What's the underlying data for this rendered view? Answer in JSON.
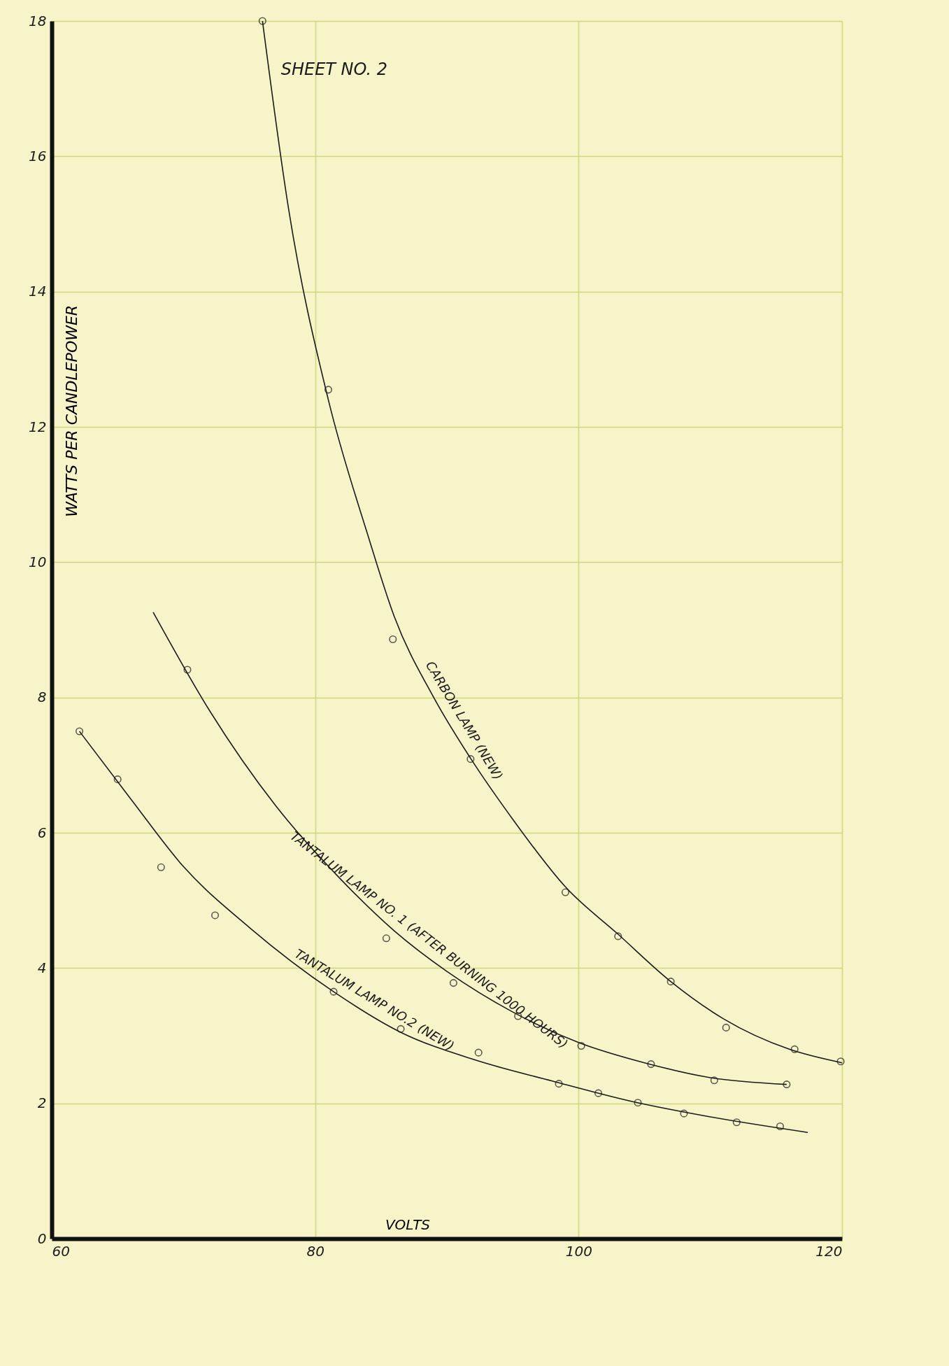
{
  "chart_data": {
    "type": "line",
    "title": "SHEET NO. 2",
    "xlabel": "VOLTS",
    "ylabel": "WATTS PER CANDLEPOWER",
    "xlim": [
      60,
      120
    ],
    "ylim": [
      0,
      18
    ],
    "xticks": [
      60,
      80,
      100,
      120
    ],
    "yticks": [
      0,
      2,
      4,
      6,
      8,
      10,
      12,
      14,
      16,
      18
    ],
    "grid": true,
    "legend": false,
    "series": [
      {
        "name": "CARBON LAMP (NEW)",
        "color": "#1a1a1a",
        "x": [
          76,
          78,
          81,
          84,
          86,
          89,
          91.8,
          95,
          99,
          103,
          107,
          111,
          116,
          120
        ],
        "values": [
          18,
          15.2,
          12.4,
          10.4,
          9.2,
          8,
          7.1,
          6.2,
          5.2,
          4.5,
          3.8,
          3.25,
          2.8,
          2.6
        ]
      },
      {
        "name": "TANTALUM LAMP NO. 1 (AFTER BURNING 1000 HOURS)",
        "color": "#1a1a1a",
        "x": [
          67.7,
          72,
          77,
          82,
          86,
          90,
          95,
          100,
          105,
          110,
          115.8
        ],
        "values": [
          9.26,
          7.8,
          6.4,
          5.3,
          4.55,
          3.95,
          3.35,
          2.9,
          2.6,
          2.38,
          2.28
        ]
      },
      {
        "name": "TANTALUM LAMP NO.2 (NEW)",
        "color": "#1a1a1a",
        "x": [
          62.1,
          66,
          70,
          75,
          81.4,
          86.5,
          92,
          98,
          104,
          110,
          117.4
        ],
        "values": [
          7.5,
          6.5,
          5.5,
          4.6,
          3.65,
          3.05,
          2.65,
          2.33,
          2.03,
          1.8,
          1.57
        ]
      },
      {
        "type": "scatter",
        "marker": "circle",
        "color": "#1a1a1a",
        "x": [
          76,
          81,
          85.9,
          91.8,
          99,
          103,
          107,
          111.2,
          116.4,
          119.9
        ],
        "values": [
          18,
          12.55,
          8.86,
          7.09,
          5.12,
          4.47,
          3.8,
          3.12,
          2.8,
          2.62
        ]
      },
      {
        "type": "scatter",
        "marker": "circle",
        "color": "#1a1a1a",
        "x": [
          70.3,
          85.4,
          90.5,
          95.4,
          100.2,
          105.5,
          110.3,
          115.8
        ],
        "values": [
          8.41,
          4.44,
          3.78,
          3.29,
          2.85,
          2.58,
          2.34,
          2.28
        ]
      },
      {
        "type": "scatter",
        "marker": "circle",
        "color": "#1a1a1a",
        "x": [
          62.1,
          65,
          68.3,
          72.4,
          81.4,
          86.5,
          92.4,
          98.5,
          101.5,
          104.5,
          108,
          112,
          115.3
        ],
        "values": [
          7.5,
          6.79,
          5.49,
          4.78,
          3.65,
          3.1,
          2.75,
          2.29,
          2.15,
          2.01,
          1.85,
          1.72,
          1.66
        ]
      }
    ]
  }
}
